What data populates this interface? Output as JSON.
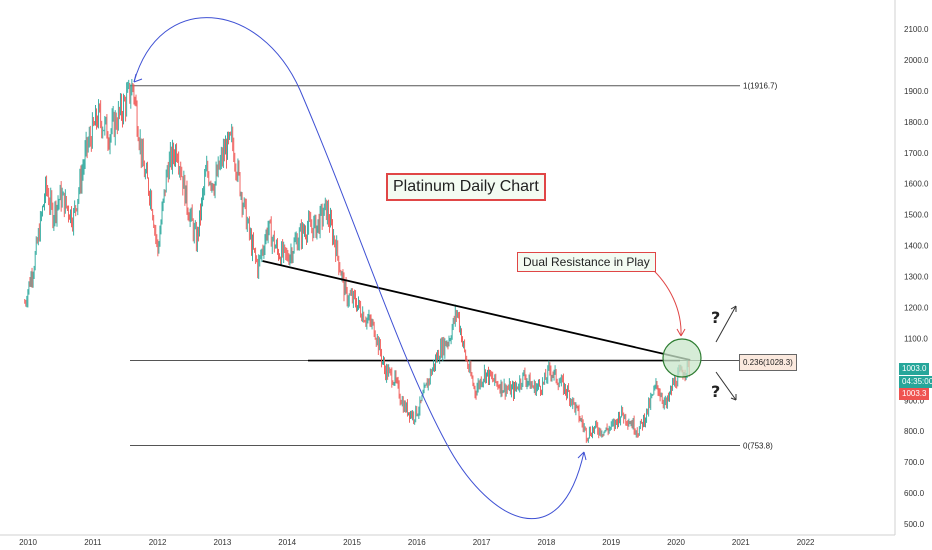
{
  "chart_data": {
    "type": "candlestick",
    "title": "Platinum Daily Chart",
    "x_ticks": [
      "2010",
      "2011",
      "2012",
      "2013",
      "2014",
      "2015",
      "2016",
      "2017",
      "2018",
      "2019",
      "2020",
      "2021",
      "2022"
    ],
    "y_ticks": [
      "2100.0",
      "2000.0",
      "1900.0",
      "1800.0",
      "1700.0",
      "1600.0",
      "1500.0",
      "1400.0",
      "1300.0",
      "1200.0",
      "1100.0",
      "1000.0",
      "900.0",
      "800.0",
      "700.0",
      "600.0",
      "500.0"
    ],
    "ylim": [
      485,
      2135
    ],
    "xlim": [
      2009.6,
      2022.75
    ],
    "price_path": [
      [
        2009.95,
        1215
      ],
      [
        2010.1,
        1350
      ],
      [
        2010.28,
        1590
      ],
      [
        2010.38,
        1500
      ],
      [
        2010.5,
        1560
      ],
      [
        2010.7,
        1490
      ],
      [
        2010.9,
        1710
      ],
      [
        2011.08,
        1820
      ],
      [
        2011.25,
        1760
      ],
      [
        2011.45,
        1840
      ],
      [
        2011.62,
        1916.7
      ],
      [
        2011.78,
        1650
      ],
      [
        2011.9,
        1560
      ],
      [
        2012.0,
        1380
      ],
      [
        2012.15,
        1650
      ],
      [
        2012.3,
        1720
      ],
      [
        2012.45,
        1540
      ],
      [
        2012.6,
        1410
      ],
      [
        2012.75,
        1640
      ],
      [
        2012.88,
        1600
      ],
      [
        2013.02,
        1700
      ],
      [
        2013.15,
        1740
      ],
      [
        2013.3,
        1560
      ],
      [
        2013.45,
        1400
      ],
      [
        2013.55,
        1330
      ],
      [
        2013.7,
        1460
      ],
      [
        2013.85,
        1380
      ],
      [
        2014.0,
        1360
      ],
      [
        2014.15,
        1420
      ],
      [
        2014.3,
        1460
      ],
      [
        2014.45,
        1460
      ],
      [
        2014.6,
        1520
      ],
      [
        2014.75,
        1400
      ],
      [
        2014.9,
        1240
      ],
      [
        2015.05,
        1220
      ],
      [
        2015.2,
        1170
      ],
      [
        2015.35,
        1130
      ],
      [
        2015.5,
        1000
      ],
      [
        2015.65,
        970
      ],
      [
        2015.8,
        880
      ],
      [
        2015.95,
        850
      ],
      [
        2016.05,
        880
      ],
      [
        2016.2,
        980
      ],
      [
        2016.35,
        1060
      ],
      [
        2016.5,
        1100
      ],
      [
        2016.62,
        1190
      ],
      [
        2016.75,
        1040
      ],
      [
        2016.9,
        930
      ],
      [
        2017.05,
        990
      ],
      [
        2017.2,
        960
      ],
      [
        2017.35,
        940
      ],
      [
        2017.5,
        930
      ],
      [
        2017.65,
        980
      ],
      [
        2017.8,
        940
      ],
      [
        2017.95,
        950
      ],
      [
        2018.05,
        1000
      ],
      [
        2018.2,
        960
      ],
      [
        2018.35,
        920
      ],
      [
        2018.5,
        850
      ],
      [
        2018.62,
        790
      ],
      [
        2018.75,
        810
      ],
      [
        2018.9,
        800
      ],
      [
        2019.05,
        820
      ],
      [
        2019.15,
        860
      ],
      [
        2019.3,
        830
      ],
      [
        2019.42,
        800
      ],
      [
        2019.55,
        860
      ],
      [
        2019.7,
        950
      ],
      [
        2019.85,
        880
      ],
      [
        2019.95,
        950
      ],
      [
        2020.05,
        980
      ],
      [
        2020.15,
        1005
      ],
      [
        2020.22,
        1003
      ]
    ],
    "horizontal_levels": [
      {
        "label": "1(1916.7)",
        "value": 1916.7
      },
      {
        "label": "0.236(1028.3)",
        "value": 1028.3
      },
      {
        "label": "0(753.8)",
        "value": 753.8
      }
    ],
    "trendline": {
      "from": [
        2013.62,
        1350
      ],
      "to": [
        2020.22,
        1030
      ]
    },
    "current_price": "1003.0",
    "countdown": "04:35:00",
    "bid_price": "1003.3",
    "annotations": {
      "title": "Platinum Daily Chart",
      "note": "Dual Resistance in Play",
      "question_mark_up": "?",
      "question_mark_down": "?"
    },
    "colors": {
      "up": "#26a69a",
      "down": "#ef5350",
      "trendline": "#000000",
      "levels": "#555555",
      "arc": "#3f51d4",
      "note_arrow": "#e04646",
      "circle_fill": "#c8e6c9",
      "circle_stroke": "#2e7d32",
      "price_tag": "#26a69a",
      "countdown_tag": "#26a69a",
      "bid_tag": "#ef5350"
    }
  }
}
